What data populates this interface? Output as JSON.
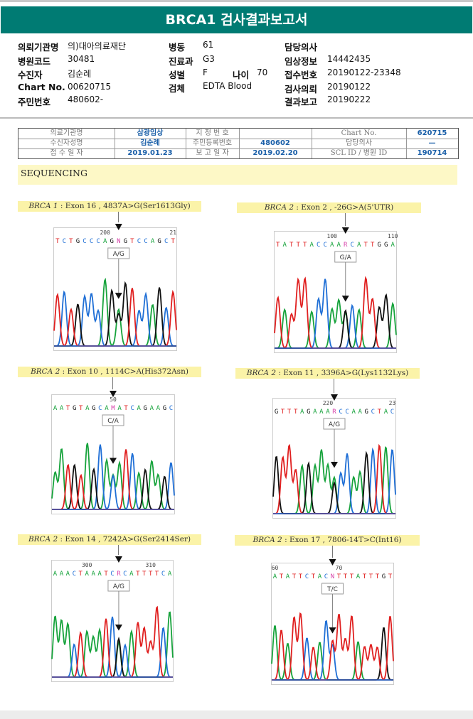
{
  "title": "BRCA1 검사결과보고서",
  "info": {
    "col1": [
      {
        "label": "의뢰기관명",
        "value": "의)대아의료재단"
      },
      {
        "label": "병원코드",
        "value": "30481"
      },
      {
        "label": "수진자",
        "value": "김순례"
      },
      {
        "label": "Chart No.",
        "value": "00620715"
      },
      {
        "label": "주민번호",
        "value": "480602-"
      }
    ],
    "col2": [
      {
        "label": "병동",
        "value": "61"
      },
      {
        "label": "진료과",
        "value": "G3"
      },
      {
        "label": "성별",
        "value": "F"
      },
      {
        "label": "검체",
        "value": "EDTA Blood"
      }
    ],
    "age": {
      "label": "나이",
      "value": "70"
    },
    "col3": [
      {
        "label": "담당의사",
        "value": ""
      },
      {
        "label": "임상정보",
        "value": "14442435"
      },
      {
        "label": "접수번호",
        "value": "20190122-23348"
      },
      {
        "label": "검사의뢰",
        "value": "20190122"
      },
      {
        "label": "결과보고",
        "value": "20190222"
      }
    ]
  },
  "scan_table": {
    "rows": [
      [
        "의료기관명",
        "삼광임상",
        "지 정 번 호",
        "",
        "Chart No.",
        "620715"
      ],
      [
        "수신자성명",
        "김순례",
        "주민등록번호",
        "480602",
        "담당의사",
        "—"
      ],
      [
        "접 수 일 자",
        "2019.01.23",
        "보 고 일 자",
        "2019.02.20",
        "SCL ID / 병원 ID",
        "190714"
      ]
    ]
  },
  "section_title": "SEQUENCING",
  "colors": {
    "A": "#17a33c",
    "C": "#1f6fd6",
    "G": "#111111",
    "T": "#e02020",
    "N": "#d63fa8",
    "header": "#007b73"
  },
  "panels": [
    {
      "gene": "BRCA 1",
      "desc": " : Exon 16 , 4837A>G(Ser1613Gly)",
      "sequence": "TCTGCCCAGNGTCCAGCT",
      "marks": [
        {
          "text": "200",
          "index": 7
        },
        {
          "text": "21",
          "index": 17
        }
      ],
      "het": "A/G",
      "var": 9
    },
    {
      "gene": "BRCA 2",
      "desc": " : Exon 2 , -26G>A(5'UTR)",
      "sequence": "TATTTACCAARCATTGGA",
      "marks": [
        {
          "text": "100",
          "index": 8
        },
        {
          "text": "110",
          "index": 17
        }
      ],
      "het": "G/A",
      "var": 10
    },
    {
      "gene": "BRCA 2",
      "desc": " : Exon 10 , 1114C>A(His372Asn)",
      "sequence": "AATGTAGCAMATCAGAAGC",
      "marks": [
        {
          "text": "50",
          "index": 9
        }
      ],
      "het": "C/A",
      "var": 9
    },
    {
      "gene": "BRCA 2",
      "desc": " : Exon 11 , 3396A>G(Lys1132Lys)",
      "sequence": "GTTTAGAAARCCAAGCTAC",
      "marks": [
        {
          "text": "220",
          "index": 8
        },
        {
          "text": "23",
          "index": 18
        }
      ],
      "het": "A/G",
      "var": 9
    },
    {
      "gene": "BRCA 2",
      "desc": " : Exon 14 , 7242A>G(Ser2414Ser)",
      "sequence": "AAACTAAATCRCATTTTCA",
      "marks": [
        {
          "text": "300",
          "index": 5
        },
        {
          "text": "310",
          "index": 15
        }
      ],
      "het": "A/G",
      "var": 10
    },
    {
      "gene": "BRCA 2",
      "desc": " : Exon 17 , 7806-14T>C(Int16)",
      "sequence": "ATATTCTACNTTTATTTGT",
      "marks": [
        {
          "text": "60",
          "index": 0
        },
        {
          "text": "70",
          "index": 10
        }
      ],
      "het": "T/C",
      "var": 9
    }
  ]
}
